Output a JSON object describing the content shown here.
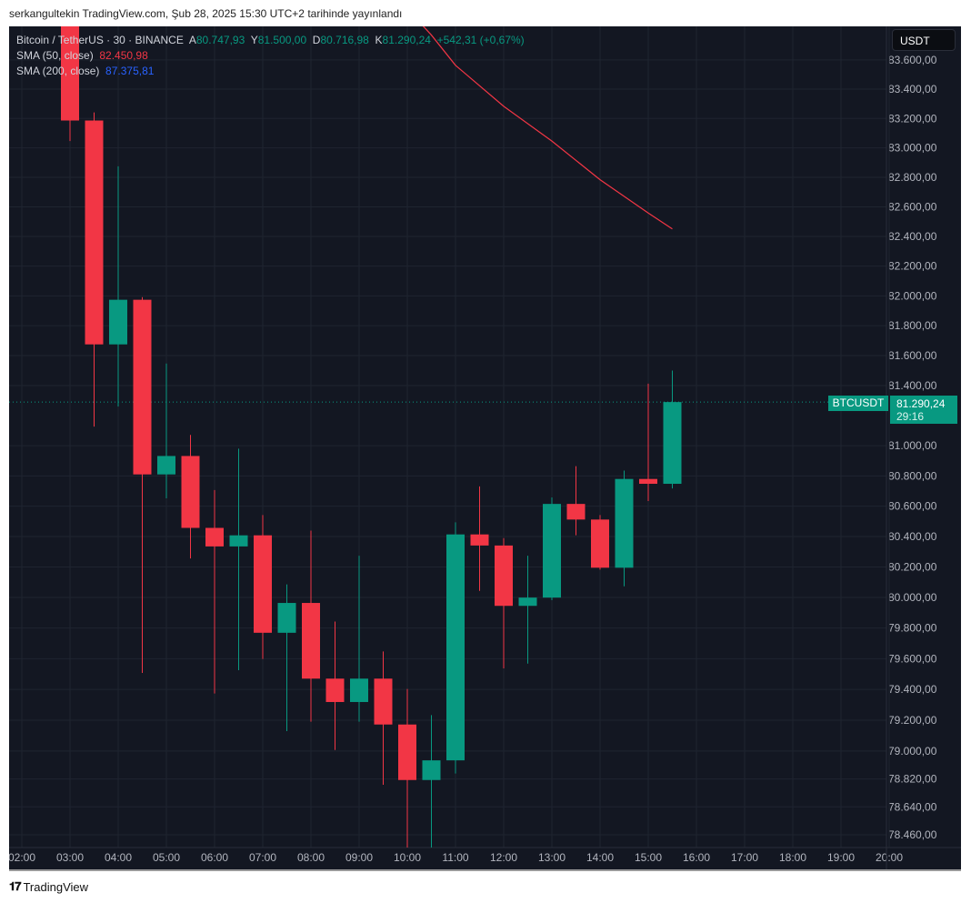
{
  "publisher_line": "serkangultekin TradingView.com, Şub 28, 2025 15:30 UTC+2 tarihinde yayınlandı",
  "legend": {
    "symbol": "Bitcoin / TetherUS · 30 · BINANCE",
    "open_label": "A",
    "open": "80.747,93",
    "high_label": "Y",
    "high": "81.500,00",
    "low_label": "D",
    "low": "80.716,98",
    "close_label": "K",
    "close": "81.290,24",
    "change": "+542,31 (+0,67%)",
    "sma50_label": "SMA (50, close)",
    "sma50_value": "82.450,98",
    "sma200_label": "SMA (200, close)",
    "sma200_value": "87.375,81"
  },
  "currency": "USDT",
  "current_price": {
    "symbol": "BTCUSDT",
    "price": "81.290,24",
    "price_value": 81290.24,
    "countdown": "29:16"
  },
  "footer": {
    "logo": "TV",
    "brand": "TradingView"
  },
  "colors": {
    "up": "#089981",
    "down": "#f23645",
    "sma50": "#f23645",
    "sma200": "#2962ff",
    "background": "#131722"
  },
  "chart_data": {
    "type": "candlestick",
    "title": "Bitcoin / TetherUS · 30 · BINANCE",
    "scale": "log",
    "ylim": [
      78300,
      83850
    ],
    "x_ticks": [
      "02:00",
      "03:00",
      "04:00",
      "05:00",
      "06:00",
      "07:00",
      "08:00",
      "09:00",
      "10:00",
      "11:00",
      "12:00",
      "13:00",
      "14:00",
      "15:00",
      "16:00",
      "17:00",
      "18:00",
      "19:00",
      "20:00"
    ],
    "y_ticks": [
      {
        "value": 83600,
        "label": "83.600,00"
      },
      {
        "value": 83400,
        "label": "83.400,00"
      },
      {
        "value": 83200,
        "label": "83.200,00"
      },
      {
        "value": 83000,
        "label": "83.000,00"
      },
      {
        "value": 82800,
        "label": "82.800,00"
      },
      {
        "value": 82600,
        "label": "82.600,00"
      },
      {
        "value": 82400,
        "label": "82.400,00"
      },
      {
        "value": 82200,
        "label": "82.200,00"
      },
      {
        "value": 82000,
        "label": "82.000,00"
      },
      {
        "value": 81800,
        "label": "81.800,00"
      },
      {
        "value": 81600,
        "label": "81.600,00"
      },
      {
        "value": 81400,
        "label": "81.400,00"
      },
      {
        "value": 81000,
        "label": "81.000,00"
      },
      {
        "value": 80800,
        "label": "80.800,00"
      },
      {
        "value": 80600,
        "label": "80.600,00"
      },
      {
        "value": 80400,
        "label": "80.400,00"
      },
      {
        "value": 80200,
        "label": "80.200,00"
      },
      {
        "value": 80000,
        "label": "80.000,00"
      },
      {
        "value": 79800,
        "label": "79.800,00"
      },
      {
        "value": 79600,
        "label": "79.600,00"
      },
      {
        "value": 79400,
        "label": "79.400,00"
      },
      {
        "value": 79200,
        "label": "79.200,00"
      },
      {
        "value": 79000,
        "label": "79.000,00"
      },
      {
        "value": 78820,
        "label": "78.820,00"
      },
      {
        "value": 78640,
        "label": "78.640,00"
      },
      {
        "value": 78460,
        "label": "78.460,00"
      }
    ],
    "candles": [
      {
        "t": "03:00",
        "o": 84300,
        "h": 84500,
        "l": 83046,
        "c": 83186
      },
      {
        "t": "03:30",
        "o": 83186,
        "h": 83241,
        "l": 81127,
        "c": 81675
      },
      {
        "t": "04:00",
        "o": 81675,
        "h": 82875,
        "l": 81261,
        "c": 81974
      },
      {
        "t": "04:30",
        "o": 81974,
        "h": 81992,
        "l": 79507,
        "c": 80810
      },
      {
        "t": "05:00",
        "o": 80810,
        "h": 81547,
        "l": 80652,
        "c": 80932
      },
      {
        "t": "05:30",
        "o": 80932,
        "h": 81072,
        "l": 80256,
        "c": 80457
      },
      {
        "t": "06:00",
        "o": 80457,
        "h": 80707,
        "l": 79373,
        "c": 80335
      },
      {
        "t": "06:30",
        "o": 80335,
        "h": 80981,
        "l": 79525,
        "c": 80408
      },
      {
        "t": "07:00",
        "o": 80408,
        "h": 80542,
        "l": 79598,
        "c": 79769
      },
      {
        "t": "07:30",
        "o": 79769,
        "h": 80086,
        "l": 79129,
        "c": 79964
      },
      {
        "t": "08:00",
        "o": 79964,
        "h": 80439,
        "l": 79190,
        "c": 79470
      },
      {
        "t": "08:30",
        "o": 79470,
        "h": 79842,
        "l": 79007,
        "c": 79318
      },
      {
        "t": "09:00",
        "o": 79318,
        "h": 80274,
        "l": 79190,
        "c": 79470
      },
      {
        "t": "09:30",
        "o": 79470,
        "h": 79647,
        "l": 78782,
        "c": 79172
      },
      {
        "t": "10:00",
        "o": 79172,
        "h": 79403,
        "l": 78356,
        "c": 78813
      },
      {
        "t": "10:30",
        "o": 78813,
        "h": 79233,
        "l": 78350,
        "c": 78940
      },
      {
        "t": "11:00",
        "o": 78940,
        "h": 80494,
        "l": 78855,
        "c": 80414
      },
      {
        "t": "11:30",
        "o": 80414,
        "h": 80731,
        "l": 80043,
        "c": 80341
      },
      {
        "t": "12:00",
        "o": 80341,
        "h": 80390,
        "l": 79537,
        "c": 79945
      },
      {
        "t": "12:30",
        "o": 79945,
        "h": 80274,
        "l": 79568,
        "c": 79999
      },
      {
        "t": "13:00",
        "o": 79999,
        "h": 80658,
        "l": 79982,
        "c": 80615
      },
      {
        "t": "13:30",
        "o": 80615,
        "h": 80865,
        "l": 80408,
        "c": 80512
      },
      {
        "t": "14:00",
        "o": 80512,
        "h": 80542,
        "l": 80183,
        "c": 80195
      },
      {
        "t": "14:30",
        "o": 80195,
        "h": 80835,
        "l": 80073,
        "c": 80780
      },
      {
        "t": "15:00",
        "o": 80780,
        "h": 81413,
        "l": 80634,
        "c": 80748
      },
      {
        "t": "15:30",
        "o": 80747.93,
        "h": 81500,
        "l": 80716.98,
        "c": 81290.24
      }
    ],
    "sma50": [
      {
        "t": "10:00",
        "v": 83950
      },
      {
        "t": "10:30",
        "v": 83770
      },
      {
        "t": "11:00",
        "v": 83563
      },
      {
        "t": "12:00",
        "v": 83283
      },
      {
        "t": "13:00",
        "v": 83046
      },
      {
        "t": "14:00",
        "v": 82784
      },
      {
        "t": "15:00",
        "v": 82558
      },
      {
        "t": "15:30",
        "v": 82450.98
      }
    ]
  }
}
